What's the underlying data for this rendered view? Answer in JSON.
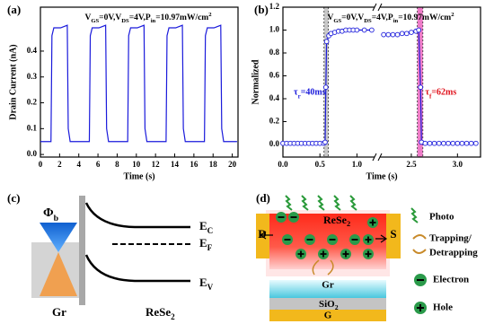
{
  "chart_data": [
    {
      "type": "line",
      "label": "(a)",
      "annotation": [
        {
          "t": "V"
        },
        {
          "t": "GS",
          "sub": true
        },
        {
          "t": "=0V,V"
        },
        {
          "t": "DS",
          "sub": true
        },
        {
          "t": "=4V,P"
        },
        {
          "t": "in",
          "sub": true
        },
        {
          "t": "=10.97mW/cm"
        },
        {
          "t": "2",
          "sup": true
        }
      ],
      "x_label": "Time (s)",
      "y_label": "Drain Current (nA)",
      "x": [
        0,
        1.1,
        1.2,
        1.4,
        2.1,
        2.8,
        2.9,
        3.1,
        5.1,
        5.2,
        5.4,
        6.1,
        6.8,
        6.9,
        7.1,
        9.1,
        9.2,
        9.4,
        10.1,
        10.8,
        10.9,
        11.1,
        13.1,
        13.2,
        13.4,
        14.1,
        14.8,
        14.9,
        15.1,
        17.1,
        17.2,
        17.4,
        18.1,
        18.8,
        18.9,
        19.1,
        20.5
      ],
      "series": [
        {
          "color": "#1a1adb",
          "values": [
            0.05,
            0.05,
            0.46,
            0.49,
            0.49,
            0.5,
            0.1,
            0.05,
            0.05,
            0.46,
            0.49,
            0.49,
            0.5,
            0.1,
            0.05,
            0.05,
            0.46,
            0.49,
            0.49,
            0.5,
            0.1,
            0.05,
            0.05,
            0.46,
            0.49,
            0.49,
            0.5,
            0.1,
            0.05,
            0.05,
            0.46,
            0.49,
            0.49,
            0.5,
            0.1,
            0.05,
            0.05
          ]
        }
      ],
      "xlim": [
        0,
        20.6
      ],
      "xticks": [
        0,
        2,
        4,
        6,
        8,
        10,
        12,
        14,
        16,
        18,
        20
      ],
      "ylim": [
        -0.01,
        0.57
      ],
      "yticks": [
        {
          "value": 0,
          "label": "0.0"
        },
        0.1,
        0.2,
        0.3,
        0.4
      ]
    },
    {
      "type": "line",
      "label": "(b)",
      "markers": true,
      "annotation": [
        {
          "t": "V"
        },
        {
          "t": "GS",
          "sub": true
        },
        {
          "t": "=0V,V"
        },
        {
          "t": "DS",
          "sub": true
        },
        {
          "t": "=4V,P"
        },
        {
          "t": "in",
          "sub": true
        },
        {
          "t": "=10.97mW/cm"
        },
        {
          "t": "2",
          "sup": true
        }
      ],
      "x_label": "Time (s)",
      "y_label": "Normalized",
      "x": [
        0,
        0.05,
        0.1,
        0.15,
        0.2,
        0.25,
        0.3,
        0.35,
        0.4,
        0.45,
        0.5,
        0.55,
        0.57,
        0.58,
        0.59,
        0.62,
        0.65,
        0.7,
        0.75,
        0.8,
        0.85,
        0.9,
        0.95,
        1.0,
        1.1,
        1.2,
        1.7,
        2.2,
        2.25,
        2.3,
        2.35,
        2.4,
        2.45,
        2.5,
        2.55,
        2.58,
        2.6,
        2.61,
        2.65,
        2.7,
        2.75,
        2.8,
        2.85,
        2.9,
        2.95,
        3.0,
        3.05,
        3.1,
        3.15,
        3.2
      ],
      "series": [
        {
          "color": "#1a1adb",
          "values": [
            0.01,
            0.01,
            0.01,
            0.01,
            0.01,
            0.01,
            0.01,
            0.01,
            0.01,
            0.01,
            0.01,
            0.01,
            0.02,
            0.5,
            0.9,
            0.95,
            0.97,
            0.98,
            0.99,
            0.99,
            1.0,
            1.0,
            1.0,
            1.0,
            1.0,
            1.0,
            null,
            0.96,
            0.96,
            0.96,
            0.96,
            0.97,
            0.97,
            0.98,
            0.99,
            1.0,
            0.5,
            0.02,
            0.01,
            0.01,
            0.01,
            0.01,
            0.01,
            0.01,
            0.01,
            0.01,
            0.01,
            0.01,
            0.01,
            0.01
          ]
        }
      ],
      "highlights": [
        {
          "x": [
            0.555,
            0.615
          ],
          "color": "#9a9a9a"
        },
        {
          "x": [
            2.565,
            2.625
          ],
          "color": "#e0109a"
        }
      ],
      "notes": [
        {
          "text": [
            {
              "t": "τ"
            },
            {
              "t": "r",
              "sub": true
            },
            {
              "t": "=40ms"
            }
          ],
          "color": "#1a1adb"
        },
        {
          "text": [
            {
              "t": "τ"
            },
            {
              "t": "f",
              "sub": true
            },
            {
              "t": "=62ms"
            }
          ],
          "color": "#e0101a"
        }
      ],
      "xlim": [
        0,
        3.25
      ],
      "xbreak": [
        1.25,
        2.15
      ],
      "xticks": [
        {
          "value": 0,
          "label": "0.0"
        },
        0.5,
        {
          "value": 1,
          "label": "1.0"
        },
        2.5,
        {
          "value": 3,
          "label": "3.0"
        }
      ],
      "ylim": [
        -0.11,
        1.2
      ],
      "yticks": [
        {
          "value": 0,
          "label": "0.0"
        },
        0.2,
        0.4,
        0.6,
        0.8,
        {
          "value": 1,
          "label": "1.0"
        },
        1.2
      ]
    }
  ],
  "diagrams": {
    "c": {
      "label": "(c)",
      "phi": [
        {
          "t": "Φ"
        },
        {
          "t": "b",
          "sub": true
        }
      ],
      "ec": [
        {
          "t": "E"
        },
        {
          "t": "C",
          "sub": true
        }
      ],
      "ef": [
        {
          "t": "E"
        },
        {
          "t": "F",
          "sub": true
        }
      ],
      "ev": [
        {
          "t": "E"
        },
        {
          "t": "V",
          "sub": true
        }
      ],
      "gr": "Gr",
      "rese2": [
        {
          "t": "ReSe"
        },
        {
          "t": "2",
          "sub": true
        }
      ]
    },
    "d": {
      "label": "(d)",
      "drain": "D",
      "source": "S",
      "rese2": [
        {
          "t": "ReSe"
        },
        {
          "t": "2",
          "sub": true
        }
      ],
      "gr": "Gr",
      "sio2": [
        {
          "t": "SiO"
        },
        {
          "t": "2",
          "sub": true
        }
      ],
      "gate": "G",
      "legend": {
        "photo": "Photo",
        "trapping": "Trapping/",
        "detrapping": "Detrapping",
        "electron": "Electron",
        "hole": "Hole"
      }
    }
  }
}
